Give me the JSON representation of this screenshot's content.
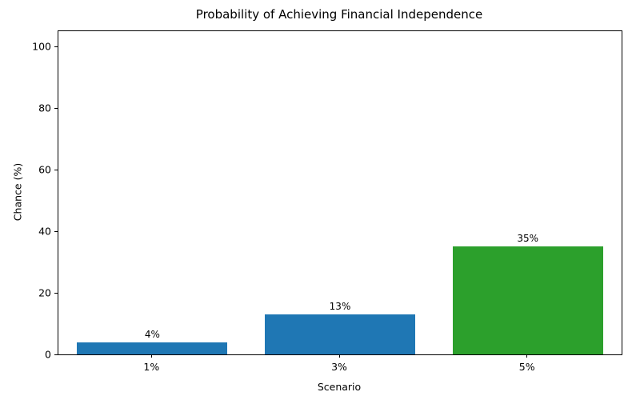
{
  "chart_data": {
    "type": "bar",
    "title": "Probability of Achieving Financial Independence",
    "xlabel": "Scenario",
    "ylabel": "Chance (%)",
    "categories": [
      "1%",
      "3%",
      "5%"
    ],
    "values": [
      4,
      13,
      35
    ],
    "bar_labels": [
      "4%",
      "13%",
      "35%"
    ],
    "bar_colors": [
      "#1f77b4",
      "#1f77b4",
      "#2ca02c"
    ],
    "ylim": [
      0,
      105
    ],
    "yticks": [
      0,
      20,
      40,
      60,
      80,
      100
    ],
    "grid": "off",
    "legend": "none"
  }
}
